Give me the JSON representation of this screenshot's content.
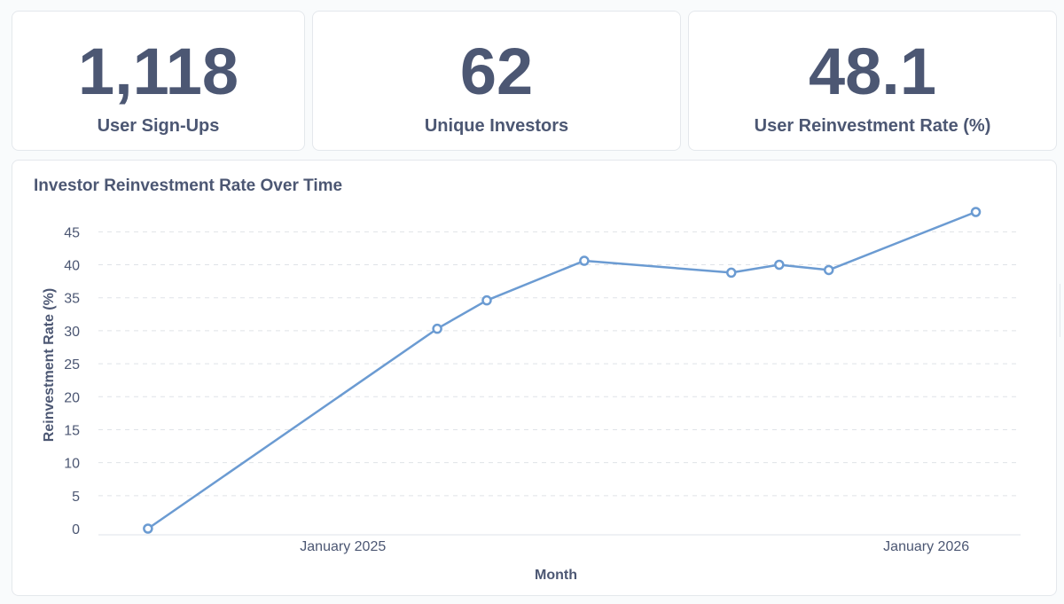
{
  "kpis": [
    {
      "value": "1,118",
      "label": "User Sign-Ups"
    },
    {
      "value": "62",
      "label": "Unique Investors"
    },
    {
      "value": "48.1",
      "label": "User Reinvestment Rate (%)"
    }
  ],
  "chart": {
    "title": "Investor Reinvestment Rate Over Time"
  },
  "colors": {
    "line": "#6b9bd2",
    "text": "#4c5773",
    "grid": "#dfe3e8"
  },
  "chart_data": {
    "type": "line",
    "title": "Investor Reinvestment Rate Over Time",
    "xlabel": "Month",
    "ylabel": "Reinvestment Rate (%)",
    "ylim": [
      0,
      48
    ],
    "yticks": [
      0,
      5,
      10,
      15,
      20,
      25,
      30,
      35,
      40,
      45
    ],
    "xticks": [
      {
        "label": "January 2025",
        "date": "2025-01-01"
      },
      {
        "label": "January 2026",
        "date": "2026-01-01"
      }
    ],
    "xlim": [
      "2024-08-01",
      "2026-03-01"
    ],
    "grid": true,
    "series": [
      {
        "x": [
          "2024-09-01",
          "2025-03-01",
          "2025-04-01",
          "2025-06-01",
          "2025-09-01",
          "2025-10-01",
          "2025-11-01",
          "2026-02-01"
        ],
        "values": [
          0,
          30.3,
          34.6,
          40.6,
          38.8,
          40.0,
          39.2,
          48.0
        ]
      }
    ]
  }
}
